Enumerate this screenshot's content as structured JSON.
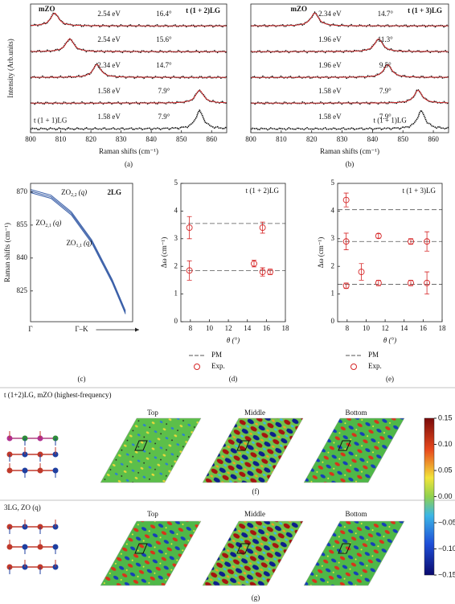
{
  "chart_data": [
    {
      "type": "spectra",
      "panel": "(a)",
      "title": "t (1 + 2)LG",
      "ylabel": "Intensity (Arb.units)",
      "xlabel": "Raman shifts (cm⁻¹)",
      "xlim": [
        800,
        865
      ],
      "xticks": [
        800,
        810,
        820,
        830,
        840,
        850,
        860
      ],
      "data_color": "#111",
      "fit_color": "#d62728",
      "series": [
        {
          "name": "mZO",
          "energy": "2.54 eV",
          "angle": "16.4°",
          "peak": 808,
          "label_color": "#2f5aa8"
        },
        {
          "energy": "2.54 eV",
          "angle": "15.6°",
          "peak": 813,
          "label_color": "#2f5aa8"
        },
        {
          "energy": "2.34 eV",
          "angle": "14.7°",
          "peak": 822,
          "label_color": "#2f5aa8"
        },
        {
          "energy": "1.58 eV",
          "angle": "7.9°",
          "peak": 856,
          "label_color": "#2f5aa8"
        },
        {
          "name": "t (1 + 1)LG",
          "energy": "1.58 eV",
          "angle": "7.9°",
          "peak": 856,
          "label_color": "#222"
        }
      ]
    },
    {
      "type": "spectra",
      "panel": "(b)",
      "title": "t (1 + 3)LG",
      "xlabel": "Raman shifts (cm⁻¹)",
      "xlim": [
        800,
        865
      ],
      "xticks": [
        800,
        810,
        820,
        830,
        840,
        850,
        860
      ],
      "data_color": "#111",
      "fit_color": "#d62728",
      "series": [
        {
          "name": "mZO",
          "energy": "2.34 eV",
          "angle": "14.7°",
          "peak": 821,
          "label_color": "#2f5aa8"
        },
        {
          "energy": "1.96 eV",
          "angle": "11.3°",
          "peak": 842,
          "label_color": "#2f5aa8"
        },
        {
          "energy": "1.96 eV",
          "angle": "9.5°",
          "peak": 845,
          "label_color": "#2f5aa8"
        },
        {
          "energy": "1.58 eV",
          "angle": "7.9°",
          "peak": 855,
          "label_color": "#2f5aa8"
        },
        {
          "name": "t (1 + 1)LG",
          "energy": "1.58 eV",
          "angle": "7.9°",
          "peak": 856,
          "label_color": "#222"
        }
      ]
    },
    {
      "type": "dispersion",
      "panel": "(c)",
      "title": "2LG",
      "ylabel": "Raman shifts (cm⁻¹)",
      "xlim": [
        0,
        1
      ],
      "ylim": [
        811,
        874
      ],
      "yticks": [
        825,
        840,
        855,
        870
      ],
      "xcategories": [
        "Γ",
        "Γ–K"
      ],
      "color": "#3a5fa8",
      "series": [
        {
          "name": "ZO",
          "sub": "2,2",
          "arg": "(q)",
          "x": [
            0,
            0.2,
            0.4,
            0.6,
            0.8,
            0.93
          ],
          "values": [
            871.2,
            868.6,
            861,
            848.2,
            830.2,
            815.9
          ]
        },
        {
          "name": "ZO",
          "sub": "2,1",
          "arg": "(q)",
          "x": [
            0,
            0.2,
            0.4,
            0.6,
            0.8,
            0.93
          ],
          "values": [
            870.5,
            867.9,
            860.3,
            847.5,
            829.5,
            815.2
          ]
        },
        {
          "name": "ZO",
          "sub": "1,1",
          "arg": "(q)",
          "x": [
            0,
            0.2,
            0.4,
            0.6,
            0.8,
            0.93
          ],
          "values": [
            869.8,
            867.2,
            859.6,
            846.8,
            828.8,
            814.5
          ]
        }
      ]
    },
    {
      "type": "errorbar",
      "panel": "(d)",
      "title": "t (1 + 2)LG",
      "ylabel": "Δω (cm⁻¹)",
      "xlabel": "θ (°)",
      "xlim": [
        7,
        18
      ],
      "xticks": [
        8,
        10,
        12,
        14,
        16,
        18
      ],
      "ylim": [
        0,
        5
      ],
      "yticks": [
        0,
        1,
        2,
        3,
        4,
        5
      ],
      "series": [
        {
          "name": "PM",
          "color": "#555",
          "values": [
            3.55,
            1.85
          ]
        },
        {
          "name": "Exp.",
          "color": "#d62728",
          "x": [
            7.9,
            7.9,
            14.7,
            15.6,
            15.6,
            16.4
          ],
          "values": [
            3.4,
            1.85,
            2.1,
            3.4,
            1.8,
            1.8
          ],
          "errors": [
            0.4,
            0.35,
            0.12,
            0.2,
            0.15,
            0.1
          ]
        }
      ]
    },
    {
      "type": "errorbar",
      "panel": "(e)",
      "title": "t (1 + 3)LG",
      "ylabel": "Δω (cm⁻¹)",
      "xlabel": "θ (°)",
      "xlim": [
        7,
        18
      ],
      "xticks": [
        8,
        10,
        12,
        14,
        16,
        18
      ],
      "ylim": [
        0,
        5
      ],
      "yticks": [
        0,
        1,
        2,
        3,
        4,
        5
      ],
      "series": [
        {
          "name": "PM",
          "color": "#555",
          "values": [
            4.05,
            2.9,
            1.35
          ]
        },
        {
          "name": "Exp.",
          "color": "#d62728",
          "x": [
            7.9,
            7.9,
            7.9,
            9.5,
            11.3,
            11.3,
            14.7,
            14.7,
            16.4,
            16.4
          ],
          "values": [
            4.4,
            2.9,
            1.3,
            1.8,
            3.1,
            1.4,
            2.9,
            1.4,
            2.9,
            1.4
          ],
          "errors": [
            0.25,
            0.3,
            0.1,
            0.3,
            0.08,
            0.1,
            0.1,
            0.1,
            0.35,
            0.4
          ]
        }
      ]
    }
  ],
  "maps": {
    "rows": [
      {
        "title": "t (1+2)LG, mZO (highest-frequency)",
        "labels": [
          "Top",
          "Middle",
          "Bottom"
        ],
        "panel": "(f)"
      },
      {
        "title": "3LG, ZO (q)",
        "labels": [
          "Top",
          "Middle",
          "Bottom"
        ],
        "panel": "(g)"
      }
    ],
    "colorbar": {
      "ylim": [
        -0.15,
        0.15
      ],
      "yticks": [
        0.15,
        {
          "value": 0.1,
          "label": "0.10"
        },
        0.05,
        {
          "value": 0,
          "label": "0.00"
        },
        {
          "value": -0.05,
          "label": "−0.05"
        },
        {
          "value": -0.1,
          "label": "−0.10"
        },
        {
          "value": -0.15,
          "label": "−0.15"
        }
      ]
    }
  }
}
